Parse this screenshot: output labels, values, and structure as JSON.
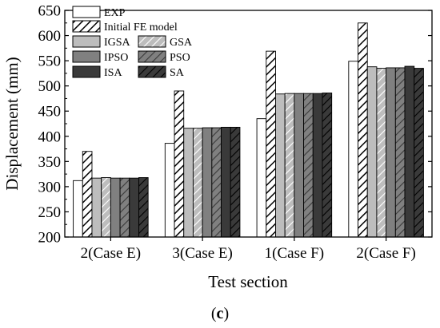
{
  "chart_data": {
    "type": "bar",
    "title": "",
    "xlabel": "Test section",
    "ylabel": "Displacement (mm)",
    "ylim": [
      200,
      650
    ],
    "yticks": [
      200,
      250,
      300,
      350,
      400,
      450,
      500,
      550,
      600,
      650
    ],
    "categories": [
      "2(Case E)",
      "3(Case E)",
      "1(Case F)",
      "2(Case F)"
    ],
    "grid": false,
    "legend_position": "top-left",
    "legend_columns": 2,
    "series": [
      {
        "name": "EXP",
        "fill": "#ffffff",
        "hatch": false,
        "values": [
          312,
          386,
          435,
          549
        ]
      },
      {
        "name": "Initial FE model",
        "fill": "#ffffff",
        "hatch": true,
        "values": [
          370,
          490,
          569,
          625
        ]
      },
      {
        "name": "IGSA",
        "fill": "#bdbdbd",
        "hatch": false,
        "values": [
          317,
          416,
          484,
          538
        ]
      },
      {
        "name": "GSA",
        "fill": "#bdbdbd",
        "hatch": true,
        "values": [
          318,
          416,
          485,
          535
        ]
      },
      {
        "name": "IPSO",
        "fill": "#808080",
        "hatch": false,
        "values": [
          317,
          417,
          485,
          536
        ]
      },
      {
        "name": "PSO",
        "fill": "#808080",
        "hatch": true,
        "values": [
          317,
          417,
          485,
          536
        ]
      },
      {
        "name": "ISA",
        "fill": "#3a3a3a",
        "hatch": false,
        "values": [
          317,
          418,
          485,
          539
        ]
      },
      {
        "name": "SA",
        "fill": "#3a3a3a",
        "hatch": true,
        "values": [
          318,
          418,
          486,
          535
        ]
      }
    ]
  },
  "figure": {
    "panel_label_open": "(",
    "panel_label_letter": "c",
    "panel_label_close": ")"
  }
}
